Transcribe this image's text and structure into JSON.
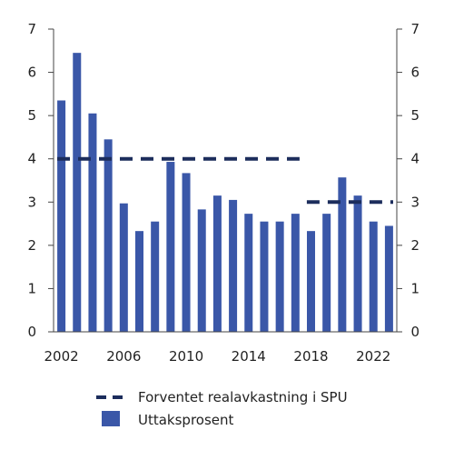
{
  "chart_data": {
    "type": "bar",
    "x": [
      2002,
      2003,
      2004,
      2005,
      2006,
      2007,
      2008,
      2009,
      2010,
      2011,
      2012,
      2013,
      2014,
      2015,
      2016,
      2017,
      2018,
      2019,
      2020,
      2021,
      2022,
      2023
    ],
    "series": [
      {
        "name": "Uttaksprosent",
        "kind": "bar",
        "color": "#3a57a8",
        "values": [
          5.35,
          6.45,
          5.05,
          4.45,
          2.97,
          2.33,
          2.55,
          3.93,
          3.67,
          2.83,
          3.15,
          3.05,
          2.73,
          2.55,
          2.55,
          2.73,
          2.33,
          2.73,
          3.57,
          3.15,
          2.55,
          2.45
        ]
      },
      {
        "name": "Forventet realavkastning i SPU",
        "kind": "dashed-line",
        "color": "#1c2d5c",
        "segments": [
          {
            "from": 2002,
            "to": 2017,
            "value": 4
          },
          {
            "from": 2018,
            "to": 2023,
            "value": 3
          }
        ]
      }
    ],
    "x_tick_labels": [
      "2002",
      "2006",
      "2010",
      "2014",
      "2018",
      "2022"
    ],
    "y_ticks": [
      0,
      1,
      2,
      3,
      4,
      5,
      6,
      7
    ],
    "ylim": [
      0,
      7
    ],
    "title": "",
    "xlabel": "",
    "ylabel": "",
    "grid": false,
    "legend_position": "bottom-center"
  }
}
